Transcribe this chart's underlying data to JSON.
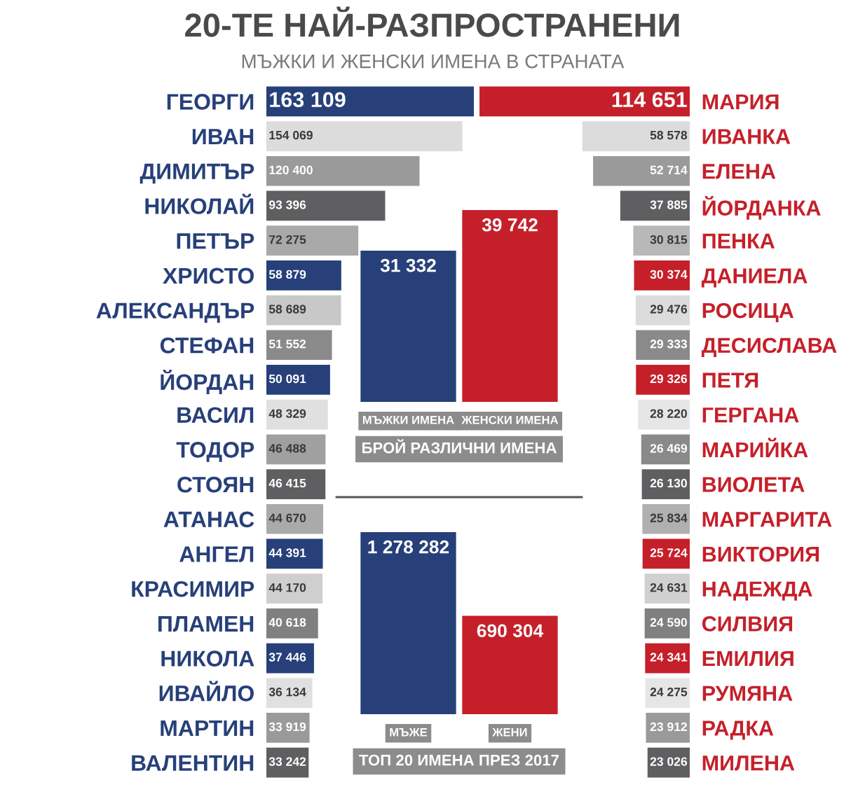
{
  "chart_data": [
    {
      "type": "bar",
      "orientation": "horizontal",
      "title": "20-ТЕ НАЙ-РАЗПРОСТРАНЕНИ",
      "subtitle": "МЪЖКИ И ЖЕНСКИ ИМЕНА В СТРАНАТА",
      "categories": [
        "ГЕОРГИ",
        "ИВАН",
        "ДИМИТЪР",
        "НИКОЛАЙ",
        "ПЕТЪР",
        "ХРИСТО",
        "АЛЕКСАНДЪР",
        "СТЕФАН",
        "ЙОРДАН",
        "ВАСИЛ",
        "ТОДОР",
        "СТОЯН",
        "АТАНАС",
        "АНГЕЛ",
        "КРАСИМИР",
        "ПЛАМЕН",
        "НИКОЛА",
        "ИВАЙЛО",
        "МАРТИН",
        "ВАЛЕНТИН"
      ],
      "series": [
        {
          "color": "#27407a",
          "colors": [
            "#27407a",
            "#dcdcdc",
            "#9a9a9b",
            "#5f5f61",
            "#a9a9aa",
            "#27407a",
            "#c8c8c8",
            "#8a8a8a",
            "#27407a",
            "#e0e0e0",
            "#a0a0a0",
            "#5f5f61",
            "#aaaaaa",
            "#27407a",
            "#cfcfcf",
            "#808080",
            "#27407a",
            "#e0e0e0",
            "#9a9a9a",
            "#5f5f61"
          ],
          "values": [
            163109,
            154069,
            120400,
            93396,
            72275,
            58879,
            58689,
            51552,
            50091,
            48329,
            46488,
            46415,
            44670,
            44391,
            44170,
            40618,
            37446,
            36134,
            33919,
            33242
          ],
          "value_labels": [
            "163 109",
            "154 069",
            "120 400",
            "93 396",
            "72 275",
            "58 879",
            "58 689",
            "51 552",
            "50 091",
            "48 329",
            "46 488",
            "46 415",
            "44 670",
            "44 391",
            "44 170",
            "40 618",
            "37 446",
            "36 134",
            "33 919",
            "33 242"
          ]
        }
      ],
      "xlim": [
        0,
        163109
      ],
      "tick_labels": "y"
    },
    {
      "type": "bar",
      "orientation": "horizontal",
      "categories": [
        "МАРИЯ",
        "ИВАНКА",
        "ЕЛЕНА",
        "ЙОРДАНКА",
        "ПЕНКА",
        "ДАНИЕЛА",
        "РОСИЦА",
        "ДЕСИСЛАВА",
        "ПЕТЯ",
        "ГЕРГАНА",
        "МАРИЙКА",
        "ВИОЛЕТА",
        "МАРГАРИТА",
        "ВИКТОРИЯ",
        "НАДЕЖДА",
        "СИЛВИЯ",
        "ЕМИЛИЯ",
        "РУМЯНА",
        "РАДКА",
        "МИЛЕНА"
      ],
      "series": [
        {
          "color": "#c5202a",
          "colors": [
            "#c5202a",
            "#dcdcdc",
            "#9a9a9a",
            "#5f5f61",
            "#b8b8b8",
            "#c5202a",
            "#dcdcdc",
            "#8a8a8a",
            "#c5202a",
            "#e6e6e6",
            "#8a8a8a",
            "#5f5f61",
            "#b0b0b0",
            "#c5202a",
            "#d0d0d0",
            "#808080",
            "#c5202a",
            "#e6e6e6",
            "#9a9a9a",
            "#5f5f61"
          ],
          "values": [
            114651,
            58578,
            52714,
            37885,
            30815,
            30374,
            29476,
            29333,
            29326,
            28220,
            26469,
            26130,
            25834,
            25724,
            24631,
            24590,
            24341,
            24275,
            23912,
            23026
          ],
          "value_labels": [
            "114 651",
            "58 578",
            "52 714",
            "37 885",
            "30 815",
            "30 374",
            "29 476",
            "29 333",
            "29 326",
            "28 220",
            "26 469",
            "26 130",
            "25 834",
            "25 724",
            "24 631",
            "24 590",
            "24 341",
            "24 275",
            "23 912",
            "23 026"
          ]
        }
      ],
      "xlim": [
        114651,
        0
      ],
      "tick_labels": "y"
    },
    {
      "type": "bar",
      "categories": [
        "МЪЖКИ ИМЕНА",
        "ЖЕНСКИ ИМЕНА"
      ],
      "xlabel": "БРОЙ РАЗЛИЧНИ ИМЕНА",
      "series": [
        {
          "colors": [
            "#27407a",
            "#c5202a"
          ],
          "values": [
            31332,
            39742
          ],
          "value_labels": [
            "31 332",
            "39 742"
          ]
        }
      ],
      "ylim": [
        0,
        39742
      ],
      "tick_labels": "x"
    },
    {
      "type": "bar",
      "categories": [
        "МЪЖЕ",
        "ЖЕНИ"
      ],
      "xlabel": "ТОП 20 ИМЕНА ПРЕЗ 2017",
      "series": [
        {
          "colors": [
            "#27407a",
            "#c5202a"
          ],
          "values": [
            1278282,
            690304
          ],
          "value_labels": [
            "1 278 282",
            "690 304"
          ]
        }
      ],
      "ylim": [
        0,
        1278282
      ],
      "tick_labels": "x"
    }
  ]
}
